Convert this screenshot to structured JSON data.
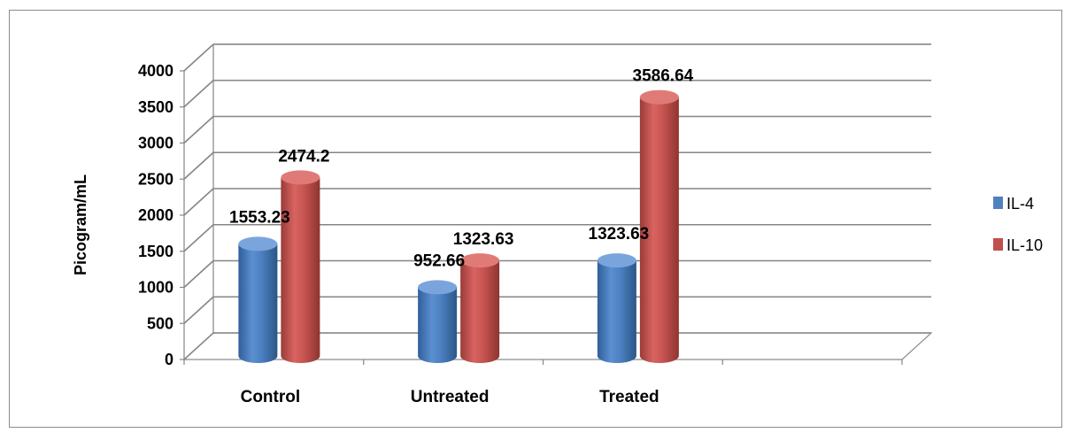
{
  "chart_data": {
    "type": "bar",
    "style": "3d-cylinder",
    "categories": [
      "Control",
      "Untreated",
      "Treated",
      ""
    ],
    "series": [
      {
        "name": "IL-4",
        "values": [
          1553.23,
          952.66,
          1323.63,
          null
        ],
        "labels": [
          "1553.23",
          "952.66",
          "1323.63",
          ""
        ],
        "color": "#4F81BD"
      },
      {
        "name": "IL-10",
        "values": [
          2474.2,
          1323.63,
          3586.64,
          null
        ],
        "labels": [
          "2474.2",
          "1323.63",
          "3586.64",
          ""
        ],
        "color": "#C0504D"
      }
    ],
    "ylabel": "Picogram/mL",
    "xlabel": "",
    "ylim": [
      0,
      4000
    ],
    "yticks": [
      "0",
      "500",
      "1000",
      "1500",
      "2000",
      "2500",
      "3000",
      "3500",
      "4000"
    ],
    "grid": true,
    "legend": "right"
  }
}
